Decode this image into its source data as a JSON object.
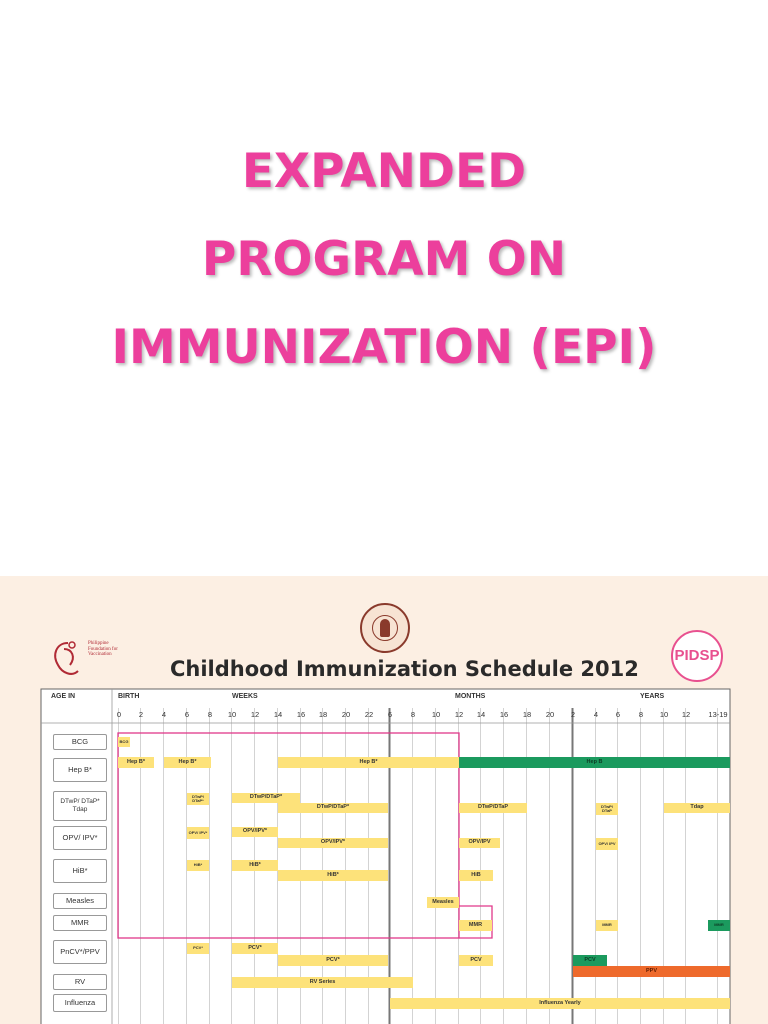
{
  "slide": {
    "title_lines": [
      "EXPANDED",
      "PROGRAM ON",
      "IMMUNIZATION (EPI)"
    ],
    "title_color": "#ec3f9c"
  },
  "schedule": {
    "title": "Childhood Immunization Schedule 2012",
    "left_logo_text": "Philippine Foundation for Vaccination",
    "right_logo_text": "PIDSP",
    "headers": {
      "age_in": "AGE IN",
      "birth": "BIRTH",
      "weeks": "WEEKS",
      "months": "MONTHS",
      "years": "YEARS"
    },
    "week_ticks": [
      "0",
      "2",
      "4",
      "6",
      "8",
      "10",
      "12",
      "14",
      "16",
      "18",
      "20",
      "22",
      "6"
    ],
    "month_ticks": [
      "8",
      "10",
      "12",
      "14",
      "16",
      "18",
      "20",
      "2"
    ],
    "year_ticks": [
      "4",
      "6",
      "8",
      "10",
      "12",
      "13-19"
    ],
    "rows": [
      {
        "label": "BCG"
      },
      {
        "label": "Hep B*"
      },
      {
        "label": "DTwP/ DTaP* Tdap"
      },
      {
        "label": "OPV/ IPV*"
      },
      {
        "label": "HiB*"
      },
      {
        "label": "Measles"
      },
      {
        "label": "MMR"
      },
      {
        "label": "PnCV*/PPV"
      },
      {
        "label": "RV"
      },
      {
        "label": "Influenza"
      }
    ],
    "bars": [
      {
        "text": "BCG",
        "color": "yellow"
      },
      {
        "text": "Hep B*",
        "color": "yellow"
      },
      {
        "text": "Hep B*",
        "color": "yellow"
      },
      {
        "text": "Hep B*",
        "color": "yellow"
      },
      {
        "text": "Hep B",
        "color": "green"
      },
      {
        "text": "DTwP/ DTaP*",
        "color": "yellow"
      },
      {
        "text": "DTwP/DTaP*",
        "color": "yellow"
      },
      {
        "text": "DTwP/DTaP*",
        "color": "yellow"
      },
      {
        "text": "DTwP/DTaP",
        "color": "yellow"
      },
      {
        "text": "DTwP/ DTaP",
        "color": "yellow"
      },
      {
        "text": "Tdap",
        "color": "yellow"
      },
      {
        "text": "OPV/ IPV*",
        "color": "yellow"
      },
      {
        "text": "OPV/IPV*",
        "color": "yellow"
      },
      {
        "text": "OPV/IPV*",
        "color": "yellow"
      },
      {
        "text": "OPV/IPV",
        "color": "yellow"
      },
      {
        "text": "OPV/ IPV",
        "color": "yellow"
      },
      {
        "text": "HiB*",
        "color": "yellow"
      },
      {
        "text": "HiB*",
        "color": "yellow"
      },
      {
        "text": "HiB*",
        "color": "yellow"
      },
      {
        "text": "HiB",
        "color": "yellow"
      },
      {
        "text": "Measles",
        "color": "yellow"
      },
      {
        "text": "MMR",
        "color": "yellow"
      },
      {
        "text": "MMR",
        "color": "yellow"
      },
      {
        "text": "MMR",
        "color": "green"
      },
      {
        "text": "PCV*",
        "color": "yellow"
      },
      {
        "text": "PCV*",
        "color": "yellow"
      },
      {
        "text": "PCV*",
        "color": "yellow"
      },
      {
        "text": "PCV",
        "color": "yellow"
      },
      {
        "text": "PCV",
        "color": "green"
      },
      {
        "text": "PPV",
        "color": "orange"
      },
      {
        "text": "RV Series",
        "color": "yellow"
      },
      {
        "text": "Influenza Yearly",
        "color": "yellow"
      }
    ],
    "colors": {
      "yellow": "#fde27a",
      "green": "#1b9a5e",
      "orange": "#ee6a2c",
      "highlight_box": "#e0388a"
    }
  }
}
